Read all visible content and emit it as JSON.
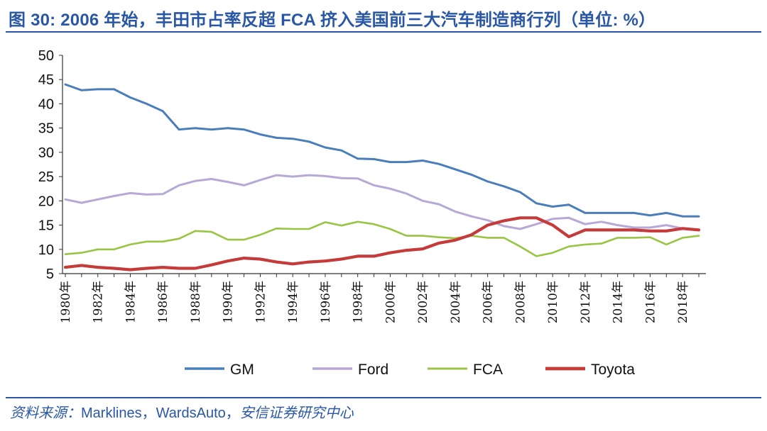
{
  "title": "图 30: 2006 年始，丰田市占率反超 FCA 挤入美国前三大汽车制造商行列（单位: %）",
  "source_label": "资料来源：",
  "source_text": "Marklines，WardsAuto，",
  "source_org": "安信证券研究中心",
  "colors": {
    "GM": "#4a7ebb",
    "Ford": "#b7a8d6",
    "FCA": "#99c444",
    "Toyota": "#c43b3a",
    "accent": "#2a57a5"
  },
  "chart_data": {
    "type": "line",
    "title": "2006 年始，丰田市占率反超 FCA 挤入美国前三大汽车制造商行列",
    "unit": "%",
    "ylim": [
      5,
      50
    ],
    "yticks": [
      5,
      10,
      15,
      20,
      25,
      30,
      35,
      40,
      45,
      50
    ],
    "x": [
      1980,
      1981,
      1982,
      1983,
      1984,
      1985,
      1986,
      1987,
      1988,
      1989,
      1990,
      1991,
      1992,
      1993,
      1994,
      1995,
      1996,
      1997,
      1998,
      1999,
      2000,
      2001,
      2002,
      2003,
      2004,
      2005,
      2006,
      2007,
      2008,
      2009,
      2010,
      2011,
      2012,
      2013,
      2014,
      2015,
      2016,
      2017,
      2018,
      2019
    ],
    "xtick_labels": [
      "1980年",
      "1982年",
      "1984年",
      "1986年",
      "1988年",
      "1990年",
      "1992年",
      "1994年",
      "1996年",
      "1998年",
      "2000年",
      "2002年",
      "2004年",
      "2006年",
      "2008年",
      "2010年",
      "2012年",
      "2014年",
      "2016年",
      "2018年"
    ],
    "legend": [
      "GM",
      "Ford",
      "FCA",
      "Toyota"
    ],
    "series": [
      {
        "name": "GM",
        "values": [
          44.0,
          42.8,
          43.0,
          43.0,
          41.3,
          40.0,
          38.5,
          34.7,
          35.0,
          34.7,
          35.0,
          34.7,
          33.7,
          33.0,
          32.8,
          32.2,
          31.0,
          30.4,
          28.7,
          28.6,
          28.0,
          28.0,
          28.3,
          27.6,
          26.5,
          25.4,
          24.0,
          23.0,
          21.8,
          19.5,
          18.8,
          19.2,
          17.5,
          17.5,
          17.5,
          17.5,
          17.0,
          17.5,
          16.8,
          16.8
        ]
      },
      {
        "name": "Ford",
        "values": [
          20.3,
          19.6,
          20.3,
          21.0,
          21.6,
          21.3,
          21.4,
          23.2,
          24.1,
          24.5,
          23.9,
          23.2,
          24.3,
          25.3,
          25.0,
          25.3,
          25.1,
          24.7,
          24.6,
          23.2,
          22.5,
          21.5,
          20.0,
          19.3,
          17.8,
          16.8,
          16.0,
          14.8,
          14.2,
          15.2,
          16.3,
          16.5,
          15.2,
          15.7,
          15.0,
          14.5,
          14.5,
          15.0,
          14.3,
          14.0
        ]
      },
      {
        "name": "FCA",
        "values": [
          9.0,
          9.3,
          10.0,
          10.0,
          11.0,
          11.6,
          11.6,
          12.2,
          13.8,
          13.6,
          12.0,
          12.0,
          13.0,
          14.3,
          14.2,
          14.2,
          15.6,
          14.9,
          15.7,
          15.2,
          14.2,
          12.8,
          12.8,
          12.5,
          12.3,
          12.8,
          12.4,
          12.4,
          10.6,
          8.6,
          9.3,
          10.6,
          11.0,
          11.2,
          12.4,
          12.4,
          12.5,
          11.0,
          12.4,
          12.8
        ]
      },
      {
        "name": "Toyota",
        "values": [
          6.3,
          6.7,
          6.3,
          6.1,
          5.8,
          6.1,
          6.3,
          6.1,
          6.1,
          6.8,
          7.6,
          8.2,
          8.0,
          7.4,
          7.0,
          7.4,
          7.6,
          8.0,
          8.6,
          8.6,
          9.3,
          9.8,
          10.1,
          11.3,
          11.9,
          13.0,
          15.0,
          15.9,
          16.5,
          16.5,
          15.0,
          12.6,
          14.0,
          14.0,
          14.0,
          14.0,
          13.8,
          13.8,
          14.3,
          14.0
        ]
      }
    ]
  }
}
